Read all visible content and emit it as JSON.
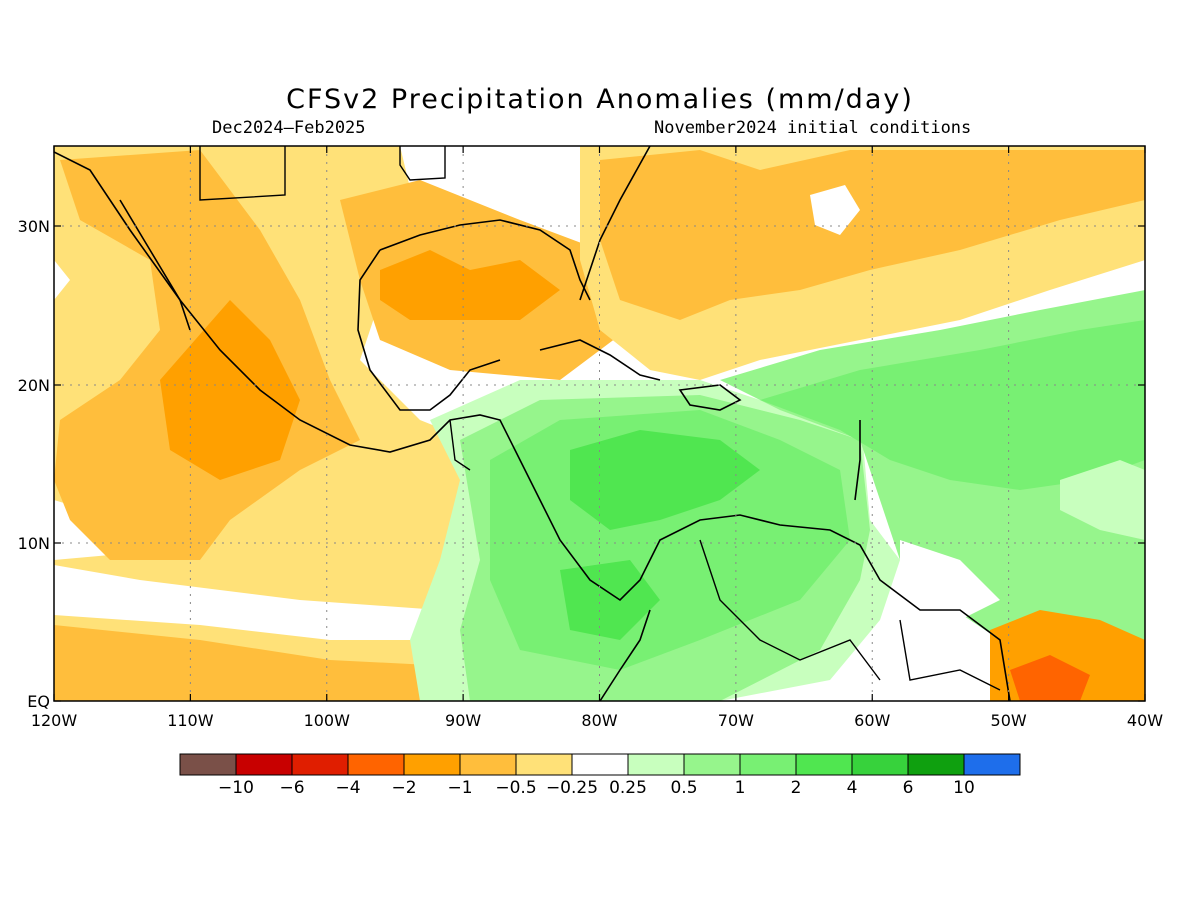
{
  "title": "CFSv2 Precipitation Anomalies (mm/day)",
  "subtitle_left": "Dec2024–Feb2025",
  "subtitle_right": "November2024 initial conditions",
  "lon_labels": [
    "120W",
    "110W",
    "100W",
    "90W",
    "80W",
    "70W",
    "60W",
    "50W",
    "40W"
  ],
  "lat_labels": [
    "30N",
    "20N",
    "10N",
    "EQ"
  ],
  "colorbar": {
    "colors": [
      "#7a5048",
      "#c80000",
      "#e01e00",
      "#ff6400",
      "#ffa000",
      "#ffbe3c",
      "#ffe178",
      "#ffffff",
      "#c8ffbe",
      "#96f58c",
      "#78f073",
      "#50e650",
      "#37d23c",
      "#0fa00f",
      "#1e6eeb"
    ],
    "labels": [
      "−10",
      "−6",
      "−4",
      "−2",
      "−1",
      "−0.5",
      "−0.25",
      "0.25",
      "0.5",
      "1",
      "2",
      "4",
      "6",
      "10"
    ]
  },
  "map": {
    "background_color": "#ffffff",
    "regions": [
      {
        "name": "dry-east-pacific",
        "color": "#ffe178"
      },
      {
        "name": "dry-mexico-core",
        "color": "#ffbe3c"
      },
      {
        "name": "dry-mexico-strong",
        "color": "#ffa000"
      },
      {
        "name": "dry-gulf",
        "color": "#ffbe3c"
      },
      {
        "name": "dry-gulf-strong",
        "color": "#ffa000"
      },
      {
        "name": "dry-atlantic",
        "color": "#ffe178"
      },
      {
        "name": "dry-atlantic-core",
        "color": "#ffbe3c"
      },
      {
        "name": "dry-equatorial-band",
        "color": "#ffbe3c"
      },
      {
        "name": "wet-caribbean-outer",
        "color": "#c8ffbe"
      },
      {
        "name": "wet-caribbean",
        "color": "#96f58c"
      },
      {
        "name": "wet-caribbean-core",
        "color": "#78f073"
      },
      {
        "name": "wet-caribbean-strong",
        "color": "#50e650"
      },
      {
        "name": "wet-atlantic",
        "color": "#96f58c"
      },
      {
        "name": "wet-atlantic-core",
        "color": "#78f073"
      },
      {
        "name": "wet-east-pacific-edge",
        "color": "#c8ffbe"
      },
      {
        "name": "dry-brazil",
        "color": "#ffa000"
      },
      {
        "name": "dry-brazil-strong",
        "color": "#ff6400"
      }
    ]
  }
}
